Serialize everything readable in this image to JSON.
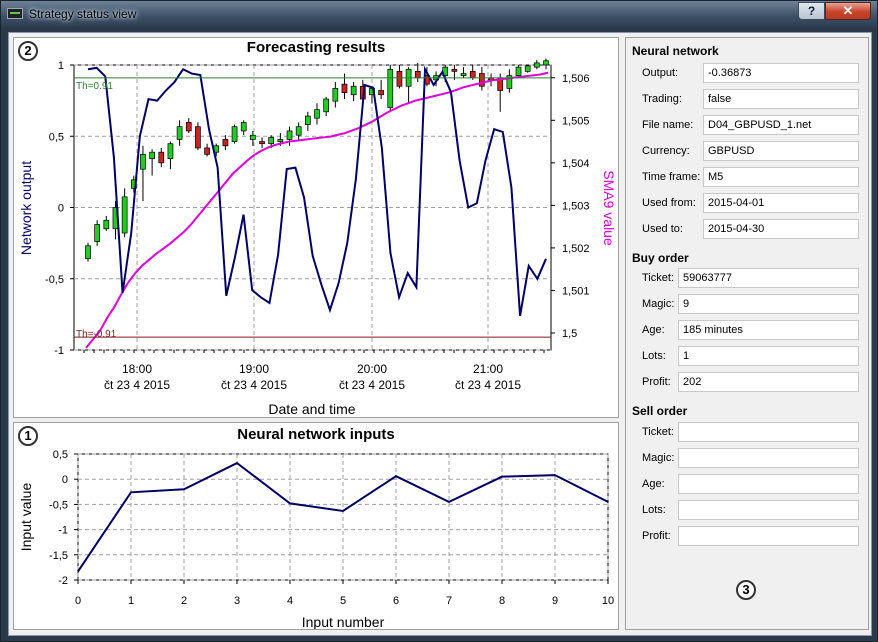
{
  "window": {
    "title": "Strategy status view",
    "help_label": "?",
    "close_label": "✕"
  },
  "forecast_panel": {
    "badge": "2",
    "title": "Forecasting results",
    "ylabel_left": "Network output",
    "ylabel_right": "SMA9 value",
    "xlabel": "Date and time",
    "threshold_high_label": "Th=0.91",
    "threshold_low_label": "Th=-0.91",
    "y_left_ticks": [
      "1",
      "0,5",
      "0",
      "-0,5",
      "-1"
    ],
    "y_right_ticks": [
      "1,506",
      "1,505",
      "1,504",
      "1,503",
      "1,502",
      "1,501",
      "1,5"
    ],
    "x_ticks": [
      {
        "time": "18:00",
        "date": "čt 23 4 2015"
      },
      {
        "time": "19:00",
        "date": "čt 23 4 2015"
      },
      {
        "time": "20:00",
        "date": "čt 23 4 2015"
      },
      {
        "time": "21:00",
        "date": "čt 23 4 2015"
      }
    ]
  },
  "inputs_panel": {
    "badge": "1",
    "title": "Neural network inputs",
    "ylabel": "Input value",
    "xlabel": "Input number"
  },
  "chart_data": [
    {
      "type": "line",
      "title": "Forecasting results",
      "xlabel": "Date and time",
      "ylabel": "Network output",
      "y2label": "SMA9 value",
      "ylim": [
        -1,
        1
      ],
      "y2lim": [
        1.4996,
        1.5063
      ],
      "x_ticks": [
        "18:00",
        "19:00",
        "20:00",
        "21:00"
      ],
      "thresholds": [
        0.91,
        -0.91
      ],
      "series": [
        {
          "name": "Network output",
          "color": "#000066",
          "values": [
            0.97,
            0.98,
            0.92,
            0.35,
            -0.6,
            -0.18,
            0.5,
            0.76,
            0.75,
            0.82,
            0.88,
            0.97,
            0.94,
            0.93,
            0.55,
            0.28,
            -0.62,
            -0.35,
            -0.05,
            -0.58,
            -0.63,
            -0.67,
            -0.33,
            0.27,
            0.28,
            0.07,
            -0.34,
            -0.54,
            -0.72,
            -0.53,
            -0.25,
            0.2,
            0.86,
            0.84,
            0.42,
            -0.32,
            -0.63,
            -0.46,
            -0.56,
            0.97,
            0.86,
            0.95,
            0.81,
            0.33,
            0.0,
            0.03,
            0.33,
            0.55,
            0.53,
            0.14,
            -0.76,
            -0.41,
            -0.5,
            -0.36
          ]
        },
        {
          "name": "SMA9 value",
          "color": "#dd00dd",
          "axis": "right",
          "values": [
            1.49965,
            1.49985,
            1.50005,
            1.50035,
            1.5006,
            1.5009,
            1.50118,
            1.5014,
            1.50158,
            1.50172,
            1.50186,
            1.50198,
            1.5021,
            1.50224,
            1.50238,
            1.50255,
            1.50275,
            1.50295,
            1.50315,
            1.50335,
            1.50355,
            1.50375,
            1.5039,
            1.50405,
            1.50418,
            1.50428,
            1.50436,
            1.50442,
            1.50446,
            1.5045,
            1.50452,
            1.50454,
            1.50456,
            1.50458,
            1.5046,
            1.50462,
            1.50466,
            1.5047,
            1.50476,
            1.50482,
            1.5049,
            1.50498,
            1.50508,
            1.50518,
            1.50526,
            1.50534,
            1.5054,
            1.50546,
            1.5055,
            1.50554,
            1.50558,
            1.50562,
            1.50566,
            1.50572,
            1.50578,
            1.50582,
            1.50586,
            1.5059,
            1.50594,
            1.50596,
            1.50598,
            1.506,
            1.50602,
            1.50604,
            1.50606,
            1.50608,
            1.50612
          ]
        }
      ]
    },
    {
      "type": "candlestick",
      "axis": "right",
      "candles": [
        {
          "o": 1.50175,
          "h": 1.50212,
          "c": 1.50205,
          "l": 1.50168
        },
        {
          "o": 1.50215,
          "h": 1.50265,
          "c": 1.50255,
          "l": 1.50205
        },
        {
          "o": 1.50245,
          "h": 1.50275,
          "c": 1.50265,
          "l": 1.5024
        },
        {
          "o": 1.50245,
          "h": 1.5031,
          "c": 1.50295,
          "l": 1.5022
        },
        {
          "o": 1.50235,
          "h": 1.5034,
          "c": 1.5032,
          "l": 1.50225
        },
        {
          "o": 1.5034,
          "h": 1.5037,
          "c": 1.5036,
          "l": 1.5033
        },
        {
          "o": 1.50385,
          "h": 1.5044,
          "c": 1.5042,
          "l": 1.5031
        },
        {
          "o": 1.5041,
          "h": 1.50432,
          "c": 1.50425,
          "l": 1.5037
        },
        {
          "o": 1.50425,
          "h": 1.50435,
          "c": 1.504,
          "l": 1.5039
        },
        {
          "o": 1.5041,
          "h": 1.5045,
          "c": 1.50445,
          "l": 1.50385
        },
        {
          "o": 1.50455,
          "h": 1.505,
          "c": 1.50485,
          "l": 1.5044
        },
        {
          "o": 1.50495,
          "h": 1.50505,
          "c": 1.50475,
          "l": 1.5047
        },
        {
          "o": 1.50485,
          "h": 1.50495,
          "c": 1.50435,
          "l": 1.5043
        },
        {
          "o": 1.50435,
          "h": 1.50445,
          "c": 1.5042,
          "l": 1.50415
        },
        {
          "o": 1.50425,
          "h": 1.50445,
          "c": 1.5044,
          "l": 1.50415
        },
        {
          "o": 1.50455,
          "h": 1.50465,
          "c": 1.5044,
          "l": 1.5043
        },
        {
          "o": 1.5045,
          "h": 1.5049,
          "c": 1.50485,
          "l": 1.50445
        },
        {
          "o": 1.50475,
          "h": 1.505,
          "c": 1.50495,
          "l": 1.50465
        },
        {
          "o": 1.50455,
          "h": 1.50475,
          "c": 1.50465,
          "l": 1.5044
        },
        {
          "o": 1.5045,
          "h": 1.5046,
          "c": 1.50445,
          "l": 1.50435
        },
        {
          "o": 1.50445,
          "h": 1.50465,
          "c": 1.5046,
          "l": 1.50435
        },
        {
          "o": 1.5045,
          "h": 1.5047,
          "c": 1.50455,
          "l": 1.5044
        },
        {
          "o": 1.50455,
          "h": 1.50485,
          "c": 1.50475,
          "l": 1.5044
        },
        {
          "o": 1.50465,
          "h": 1.50495,
          "c": 1.50485,
          "l": 1.50455
        },
        {
          "o": 1.5049,
          "h": 1.5052,
          "c": 1.5051,
          "l": 1.50475
        },
        {
          "o": 1.50505,
          "h": 1.5054,
          "c": 1.50525,
          "l": 1.5049
        },
        {
          "o": 1.5052,
          "h": 1.50555,
          "c": 1.5055,
          "l": 1.5051
        },
        {
          "o": 1.50545,
          "h": 1.5059,
          "c": 1.50575,
          "l": 1.5053
        },
        {
          "o": 1.50585,
          "h": 1.5061,
          "c": 1.50565,
          "l": 1.5055
        },
        {
          "o": 1.5056,
          "h": 1.5059,
          "c": 1.5058,
          "l": 1.50545
        },
        {
          "o": 1.5058,
          "h": 1.50595,
          "c": 1.5055,
          "l": 1.50545
        },
        {
          "o": 1.5056,
          "h": 1.5058,
          "c": 1.50575,
          "l": 1.5054
        },
        {
          "o": 1.5057,
          "h": 1.50595,
          "c": 1.5056,
          "l": 1.5055
        },
        {
          "o": 1.5053,
          "h": 1.5063,
          "c": 1.5062,
          "l": 1.5052
        },
        {
          "o": 1.50615,
          "h": 1.5063,
          "c": 1.5058,
          "l": 1.50575
        },
        {
          "o": 1.5058,
          "h": 1.50625,
          "c": 1.5062,
          "l": 1.5054
        },
        {
          "o": 1.50615,
          "h": 1.50635,
          "c": 1.506,
          "l": 1.5059
        },
        {
          "o": 1.50605,
          "h": 1.50625,
          "c": 1.50585,
          "l": 1.5058
        },
        {
          "o": 1.50595,
          "h": 1.50615,
          "c": 1.50605,
          "l": 1.5058
        },
        {
          "o": 1.50605,
          "h": 1.5063,
          "c": 1.50625,
          "l": 1.5059
        },
        {
          "o": 1.5062,
          "h": 1.5063,
          "c": 1.50615,
          "l": 1.50595
        },
        {
          "o": 1.50605,
          "h": 1.50625,
          "c": 1.5061,
          "l": 1.506
        },
        {
          "o": 1.50615,
          "h": 1.5063,
          "c": 1.506,
          "l": 1.50595
        },
        {
          "o": 1.5061,
          "h": 1.50625,
          "c": 1.5058,
          "l": 1.5057
        },
        {
          "o": 1.506,
          "h": 1.5061,
          "c": 1.50595,
          "l": 1.5058
        },
        {
          "o": 1.506,
          "h": 1.5061,
          "c": 1.5057,
          "l": 1.5052
        },
        {
          "o": 1.50575,
          "h": 1.5062,
          "c": 1.50605,
          "l": 1.50565
        },
        {
          "o": 1.50605,
          "h": 1.5063,
          "c": 1.50625,
          "l": 1.506
        },
        {
          "o": 1.50615,
          "h": 1.5063,
          "c": 1.50628,
          "l": 1.50612
        },
        {
          "o": 1.50625,
          "h": 1.50642,
          "c": 1.50635,
          "l": 1.5062
        },
        {
          "o": 1.5063,
          "h": 1.50645,
          "c": 1.5064,
          "l": 1.5062
        }
      ]
    },
    {
      "type": "line",
      "title": "Neural network inputs",
      "xlabel": "Input number",
      "ylabel": "Input value",
      "xlim": [
        0,
        10
      ],
      "ylim": [
        -2,
        0.5
      ],
      "x_ticks": [
        "0",
        "1",
        "2",
        "3",
        "4",
        "5",
        "6",
        "7",
        "8",
        "9",
        "10"
      ],
      "y_ticks": [
        "0,5",
        "0",
        "-0,5",
        "-1",
        "-1,5",
        "-2"
      ],
      "x": [
        0,
        1,
        2,
        3,
        4,
        5,
        6,
        7,
        8,
        9,
        10
      ],
      "values": [
        -1.83,
        -0.26,
        -0.2,
        0.32,
        -0.48,
        -0.63,
        0.06,
        -0.45,
        0.05,
        0.08,
        -0.45
      ]
    }
  ],
  "neural_network": {
    "title": "Neural network",
    "fields": [
      {
        "label": "Output:",
        "value": "-0.36873"
      },
      {
        "label": "Trading:",
        "value": "false"
      },
      {
        "label": "File name:",
        "value": "D04_GBPUSD_1.net"
      },
      {
        "label": "Currency:",
        "value": "GBPUSD"
      },
      {
        "label": "Time frame:",
        "value": "M5"
      },
      {
        "label": "Used from:",
        "value": "2015-04-01"
      },
      {
        "label": "Used to:",
        "value": "2015-04-30"
      }
    ]
  },
  "buy_order": {
    "title": "Buy order",
    "fields": [
      {
        "label": "Ticket:",
        "value": "59063777"
      },
      {
        "label": "Magic:",
        "value": "9"
      },
      {
        "label": "Age:",
        "value": "185 minutes"
      },
      {
        "label": "Lots:",
        "value": "1"
      },
      {
        "label": "Profit:",
        "value": "202"
      }
    ]
  },
  "sell_order": {
    "title": "Sell order",
    "fields": [
      {
        "label": "Ticket:",
        "value": ""
      },
      {
        "label": "Magic:",
        "value": ""
      },
      {
        "label": "Age:",
        "value": ""
      },
      {
        "label": "Lots:",
        "value": ""
      },
      {
        "label": "Profit:",
        "value": ""
      }
    ]
  },
  "side_badge": "3",
  "colors": {
    "network_line": "#000066",
    "sma_line": "#dd00dd",
    "bull": "#22cc22",
    "bear": "#cc2222",
    "th_high": "#2e7d2e",
    "th_low": "#7d1e1e"
  }
}
